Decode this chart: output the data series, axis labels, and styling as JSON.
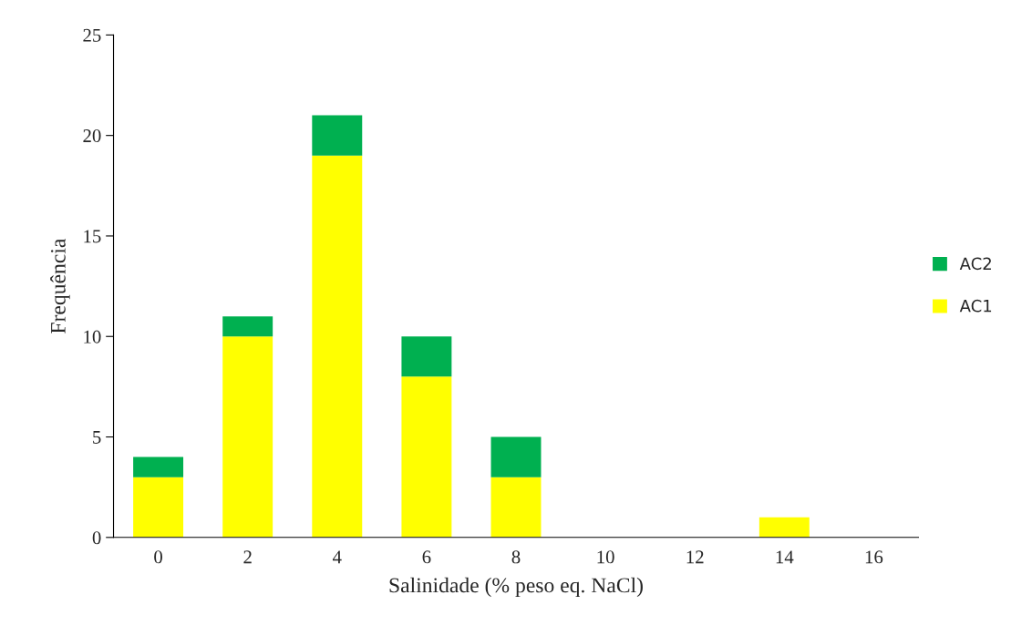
{
  "chart_data": {
    "type": "bar",
    "stacked": true,
    "xlabel": "Salinidade (% peso eq. NaCl)",
    "ylabel": "Frequência",
    "categories": [
      "0",
      "2",
      "4",
      "6",
      "8",
      "10",
      "12",
      "14",
      "16"
    ],
    "series": [
      {
        "name": "AC1",
        "color": "#ffff00",
        "values": [
          3,
          10,
          19,
          8,
          3,
          0,
          0,
          1,
          0
        ]
      },
      {
        "name": "AC2",
        "color": "#00b050",
        "values": [
          1,
          1,
          2,
          2,
          2,
          0,
          0,
          0,
          0
        ]
      }
    ],
    "ylim": [
      0,
      25
    ],
    "yticks": [
      0,
      5,
      10,
      15,
      20,
      25
    ],
    "grid": false,
    "legend": "right"
  }
}
